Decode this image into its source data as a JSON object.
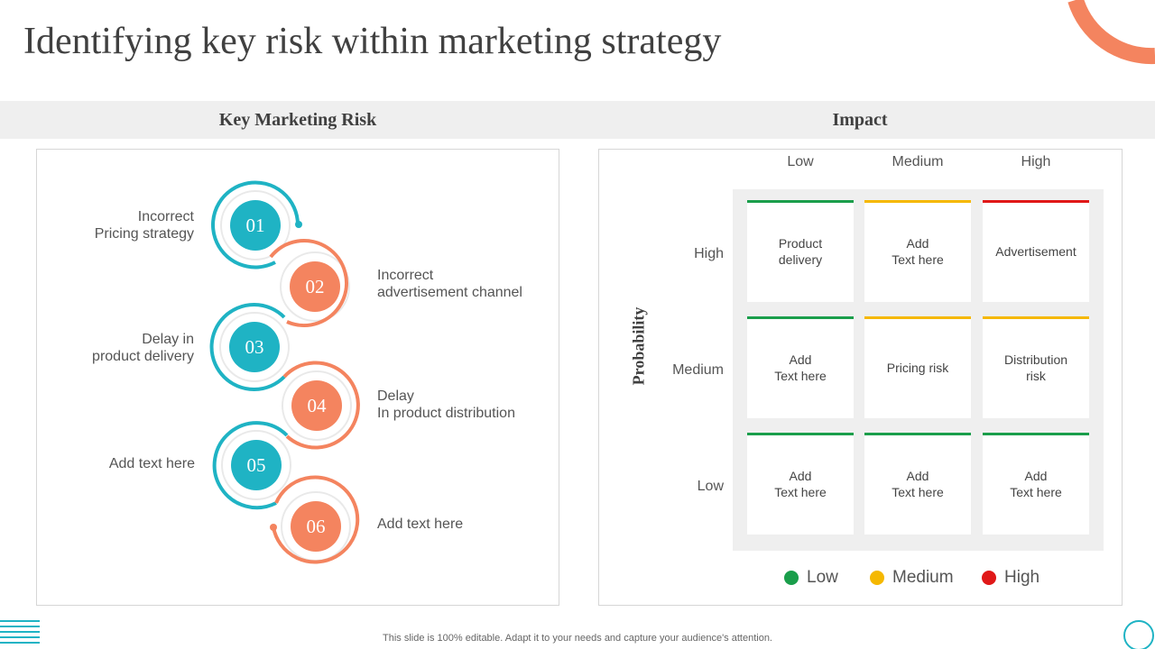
{
  "title": "Identifying key risk within marketing strategy",
  "headers": {
    "left": "Key Marketing  Risk",
    "right": "Impact"
  },
  "risks": [
    {
      "number": "01",
      "label": "Incorrect\nPricing strategy"
    },
    {
      "number": "02",
      "label": "Incorrect\nadvertisement channel"
    },
    {
      "number": "03",
      "label": "Delay in\nproduct delivery"
    },
    {
      "number": "04",
      "label": "Delay\nIn product distribution"
    },
    {
      "number": "05",
      "label": "Add text here"
    },
    {
      "number": "06",
      "label": "Add text here"
    }
  ],
  "matrix": {
    "axis_label": "Probability",
    "columns": [
      "Low",
      "Medium",
      "High"
    ],
    "rows": [
      "High",
      "Medium",
      "Low"
    ],
    "cells": [
      [
        "Product\ndelivery",
        "Add\nText here",
        "Advertisement"
      ],
      [
        "Add\nText here",
        "Pricing risk",
        "Distribution\nrisk"
      ],
      [
        "Add\nText here",
        "Add\nText here",
        "Add\nText here"
      ]
    ],
    "cell_levels": [
      [
        "low",
        "medium",
        "high"
      ],
      [
        "low",
        "medium",
        "medium"
      ],
      [
        "low",
        "low",
        "low"
      ]
    ]
  },
  "legend": [
    {
      "label": "Low",
      "color": "#1a9e4b"
    },
    {
      "label": "Medium",
      "color": "#f5b800"
    },
    {
      "label": "High",
      "color": "#e01818"
    }
  ],
  "colors": {
    "teal": "#1fb3c4",
    "coral": "#f4845f",
    "low": "#1a9e4b",
    "medium": "#f5b800",
    "high": "#e01818"
  },
  "footer": "This slide is 100% editable. Adapt it to your needs and capture your audience's attention."
}
